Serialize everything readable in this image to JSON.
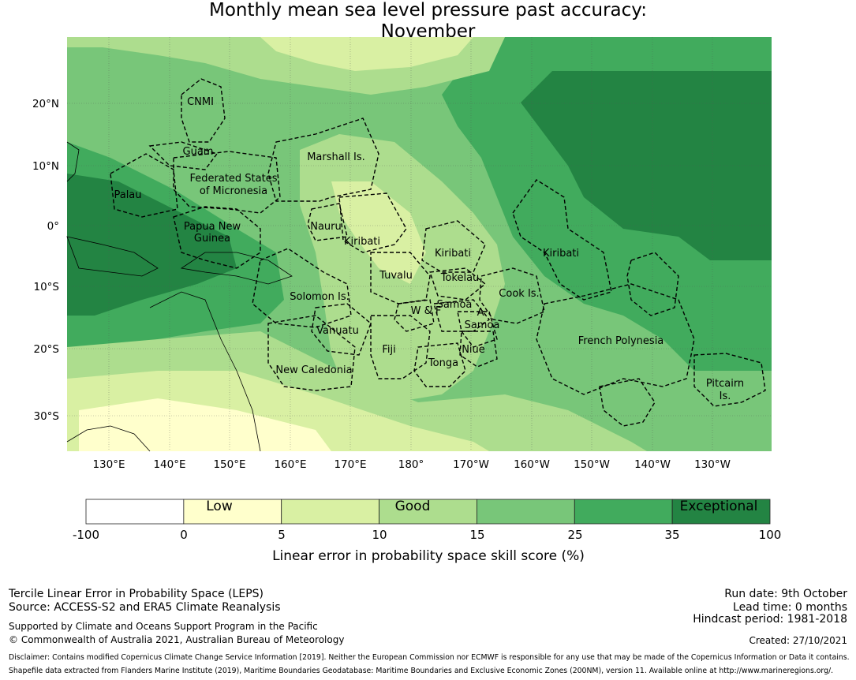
{
  "title_line1": "Monthly mean sea level pressure past accuracy:",
  "title_line2": "November",
  "map": {
    "lat_ticks": [
      "20°N",
      "10°N",
      "0°",
      "10°S",
      "20°S",
      "30°S"
    ],
    "lon_ticks": [
      "130°E",
      "140°E",
      "150°E",
      "160°E",
      "170°E",
      "180°",
      "170°W",
      "160°W",
      "150°W",
      "140°W",
      "130°W"
    ],
    "regions": [
      {
        "name": "CNMI"
      },
      {
        "name": "Guam"
      },
      {
        "name": "Marshall Is."
      },
      {
        "name": "Federated States"
      },
      {
        "name": "of Micronesia"
      },
      {
        "name": "Palau"
      },
      {
        "name": "Papua New"
      },
      {
        "name": "Guinea"
      },
      {
        "name": "Nauru"
      },
      {
        "name": "Kiribati"
      },
      {
        "name": "Kiribati"
      },
      {
        "name": "Kiribati"
      },
      {
        "name": "Tuvalu"
      },
      {
        "name": "Tokelau"
      },
      {
        "name": "Solomon Is."
      },
      {
        "name": "Cook Is."
      },
      {
        "name": "Samoa"
      },
      {
        "name": "W & F"
      },
      {
        "name": "A."
      },
      {
        "name": "Samoa"
      },
      {
        "name": "Vanuatu"
      },
      {
        "name": "Fiji"
      },
      {
        "name": "Niue"
      },
      {
        "name": "French Polynesia"
      },
      {
        "name": "New Caledonia"
      },
      {
        "name": "Tonga"
      },
      {
        "name": "Pitcairn"
      },
      {
        "name": "Is."
      }
    ]
  },
  "legend": {
    "boundaries": [
      "-100",
      "0",
      "5",
      "10",
      "15",
      "25",
      "35",
      "100"
    ],
    "colors": [
      "#ffffff",
      "#ffffcc",
      "#d9f0a3",
      "#addd8e",
      "#78c679",
      "#41ab5d",
      "#238443"
    ],
    "category_labels": [
      "Low",
      "Good",
      "Exceptional"
    ],
    "axis_label": "Linear error in probability space skill score (%)"
  },
  "footer": {
    "left_line1": "Tercile Linear Error in Probability Space (LEPS)",
    "left_line2": "Source: ACCESS-S2 and ERA5 Climate Reanalysis",
    "left_line3": "Supported by Climate and Oceans Support Program in the Pacific",
    "left_line4": "© Commonwealth of Australia 2021, Australian Bureau of Meteorology",
    "right_line1": "Run date: 9th October",
    "right_line2": "Lead time: 0 months",
    "right_line3": "Hindcast period: 1981-2018",
    "right_line4": "Created: 27/10/2021",
    "disclaimer1": "Disclaimer: Contains modified Copernicus Climate Change Service Information [2019]. Neither the European Commission nor ECMWF is responsible for any use that may be made of the Copernicus Information or Data it contains.",
    "disclaimer2": "Shapefile data extracted from Flanders Marine Institute (2019), Maritime Boundaries Geodatabase: Maritime Boundaries and Exclusive Economic Zones (200NM), version 11. Available online at http://www.marineregions.org/."
  }
}
